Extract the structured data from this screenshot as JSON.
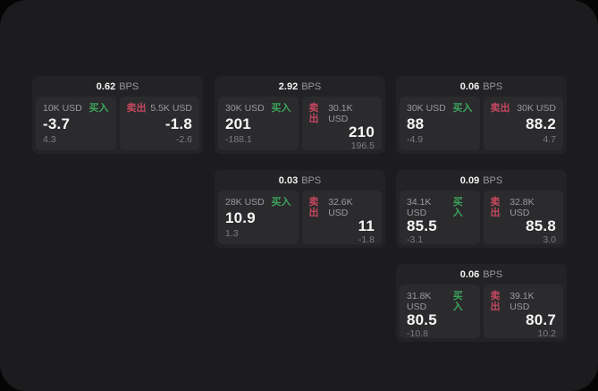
{
  "labels": {
    "bps": "BPS",
    "buy": "买入",
    "sell": "卖出"
  },
  "colors": {
    "page_background": "#1c1c1e",
    "card_background": "#232325",
    "panel_background": "#2b2b2d",
    "buy_green": "#3ca45c",
    "sell_red": "#c5485f",
    "value_white": "#f5f5f6",
    "muted_gray": "#9a9a9f"
  },
  "cards": [
    {
      "bps": "0.62",
      "buy": {
        "amount": "10K USD",
        "value": "-3.7",
        "sub": "4.3"
      },
      "sell": {
        "amount": "5.5K USD",
        "value": "-1.8",
        "sub": "-2.6"
      }
    },
    {
      "bps": "2.92",
      "buy": {
        "amount": "30K USD",
        "value": "201",
        "sub": "-188.1"
      },
      "sell": {
        "amount": "30.1K USD",
        "value": "210",
        "sub": "196.5"
      }
    },
    {
      "bps": "0.06",
      "buy": {
        "amount": "30K USD",
        "value": "88",
        "sub": "-4.9"
      },
      "sell": {
        "amount": "30K USD",
        "value": "88.2",
        "sub": "4.7"
      }
    },
    {
      "bps": "0.03",
      "buy": {
        "amount": "28K USD",
        "value": "10.9",
        "sub": "1.3"
      },
      "sell": {
        "amount": "32.6K USD",
        "value": "11",
        "sub": "-1.8"
      }
    },
    {
      "bps": "0.09",
      "buy": {
        "amount": "34.1K USD",
        "value": "85.5",
        "sub": "-3.1"
      },
      "sell": {
        "amount": "32.8K USD",
        "value": "85.8",
        "sub": "3.0"
      }
    },
    {
      "bps": "0.06",
      "buy": {
        "amount": "31.8K USD",
        "value": "80.5",
        "sub": "-10.8"
      },
      "sell": {
        "amount": "39.1K USD",
        "value": "80.7",
        "sub": "10.2"
      }
    }
  ]
}
